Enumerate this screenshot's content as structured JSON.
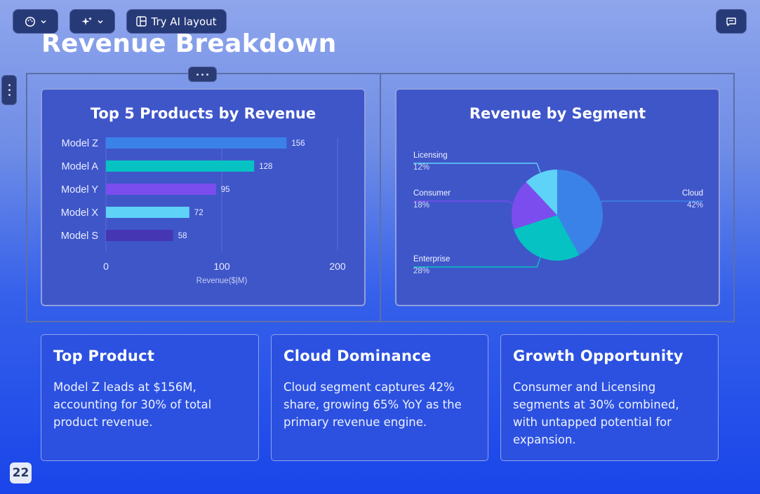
{
  "toolbar": {
    "layout_label": "Try AI layout"
  },
  "page": {
    "title": "Revenue Breakdown",
    "page_number": "22"
  },
  "chart_data": [
    {
      "type": "bar",
      "orientation": "horizontal",
      "title": "Top 5 Products by Revenue",
      "xlabel": "Revenue($|M)",
      "categories": [
        "Model Z",
        "Model A",
        "Model Y",
        "Model X",
        "Model S"
      ],
      "values": [
        156,
        128,
        95,
        72,
        58
      ],
      "colors": [
        "#3b82e8",
        "#06c2c2",
        "#7c4dee",
        "#5fd2f7",
        "#4536b4"
      ],
      "xlim": [
        0,
        200
      ],
      "xticks": [
        "0",
        "100",
        "200"
      ]
    },
    {
      "type": "pie",
      "title": "Revenue by Segment",
      "slices": [
        {
          "label": "Cloud",
          "value": 42,
          "pct": "42%",
          "color": "#3b82e8"
        },
        {
          "label": "Enterprise",
          "value": 28,
          "pct": "28%",
          "color": "#06c2c2"
        },
        {
          "label": "Consumer",
          "value": 18,
          "pct": "18%",
          "color": "#7c4dee"
        },
        {
          "label": "Licensing",
          "value": 12,
          "pct": "12%",
          "color": "#5fd2f7"
        }
      ]
    }
  ],
  "insights": [
    {
      "title": "Top Product",
      "text": "Model Z leads at $156M, accounting for 30% of total product revenue."
    },
    {
      "title": "Cloud Dominance",
      "text": "Cloud segment captures 42% share, growing 65% YoY as the primary revenue engine."
    },
    {
      "title": "Growth Opportunity",
      "text": "Consumer and Licensing segments at 30% combined, with untapped potential for expansion."
    }
  ]
}
